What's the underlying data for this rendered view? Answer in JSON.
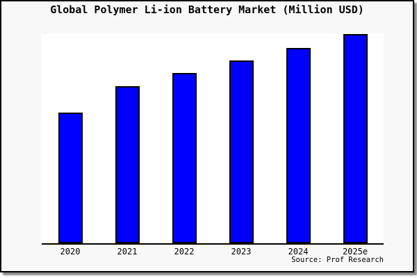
{
  "frame": {
    "title": "Global Polymer Li-ion Battery Market (Million USD)",
    "source_text": "Source: Prof Research"
  },
  "colors": {
    "canvas_bg": "#f8f8f8",
    "plot_bg": "#ffffff",
    "bar_fill": "#0000ff",
    "bar_border": "#000000",
    "axis": "#000000",
    "frame_border": "#000000",
    "shadow": "#8a8a8a",
    "text": "#000000"
  },
  "chart_data": {
    "type": "bar",
    "title": "Global Polymer Li-ion Battery Market (Million USD)",
    "categories": [
      "2020",
      "2021",
      "2022",
      "2023",
      "2024",
      "2025e"
    ],
    "values": [
      62.5,
      75,
      81.5,
      87.5,
      93.5,
      100
    ],
    "value_scale": "percent of 2025e bar (y-axis has no tick labels)",
    "xlabel": "",
    "ylabel": "",
    "ylim": [
      0,
      100
    ],
    "grid": false,
    "legend": false,
    "y_axis_ticks_visible": false,
    "source": "Source: Prof Research"
  }
}
